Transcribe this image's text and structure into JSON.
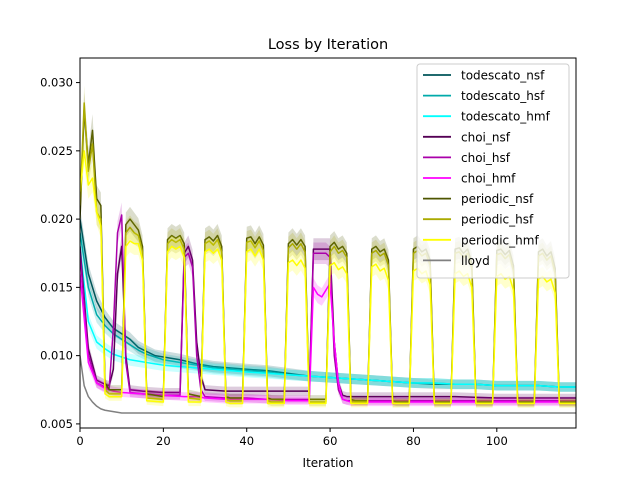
{
  "chart_data": {
    "type": "line",
    "title": "Loss by Iteration",
    "xlabel": "Iteration",
    "ylabel": "",
    "xlim": [
      0,
      119
    ],
    "ylim": [
      0.0047,
      0.0318
    ],
    "xticks": [
      0,
      20,
      40,
      60,
      80,
      100
    ],
    "yticks": [
      0.005,
      0.01,
      0.015,
      0.02,
      0.025,
      0.03
    ],
    "ytick_labels": [
      "0.005",
      "0.010",
      "0.015",
      "0.020",
      "0.025",
      "0.030"
    ],
    "grid": false,
    "legend_position": "top-right",
    "series": [
      {
        "name": "todescato_nsf",
        "color": "#00555a",
        "x": [
          0,
          2,
          4,
          6,
          8,
          10,
          12,
          14,
          16,
          18,
          20,
          24,
          28,
          32,
          36,
          40,
          45,
          50,
          55,
          60,
          65,
          70,
          75,
          80,
          85,
          90,
          95,
          100,
          105,
          110,
          115,
          119
        ],
        "y": [
          0.02,
          0.016,
          0.014,
          0.0128,
          0.012,
          0.0116,
          0.0112,
          0.0106,
          0.0103,
          0.01,
          0.0099,
          0.0097,
          0.0094,
          0.0092,
          0.0091,
          0.009,
          0.0089,
          0.0087,
          0.0085,
          0.0084,
          0.0083,
          0.0082,
          0.0081,
          0.008,
          0.0079,
          0.0079,
          0.0079,
          0.0078,
          0.0078,
          0.0078,
          0.0077,
          0.0077
        ]
      },
      {
        "name": "todescato_hsf",
        "color": "#00aaaa",
        "x": [
          0,
          2,
          4,
          6,
          8,
          10,
          12,
          14,
          16,
          18,
          20,
          24,
          28,
          32,
          36,
          40,
          45,
          50,
          55,
          60,
          65,
          70,
          75,
          80,
          85,
          90,
          95,
          100,
          105,
          110,
          115,
          119
        ],
        "y": [
          0.019,
          0.015,
          0.013,
          0.0122,
          0.0116,
          0.0112,
          0.0108,
          0.0104,
          0.0101,
          0.0099,
          0.0097,
          0.0095,
          0.0093,
          0.0091,
          0.009,
          0.0089,
          0.0088,
          0.0086,
          0.0085,
          0.0084,
          0.0083,
          0.0082,
          0.0081,
          0.008,
          0.008,
          0.0079,
          0.0079,
          0.0078,
          0.0078,
          0.0078,
          0.0077,
          0.0077
        ]
      },
      {
        "name": "todescato_hmf",
        "color": "#00ffff",
        "x": [
          0,
          2,
          4,
          6,
          8,
          10,
          12,
          14,
          16,
          18,
          20,
          24,
          28,
          32,
          36,
          40,
          45,
          50,
          55,
          60,
          65,
          70,
          75,
          80,
          85,
          90,
          95,
          100,
          105,
          110,
          115,
          119
        ],
        "y": [
          0.018,
          0.0125,
          0.011,
          0.0105,
          0.0101,
          0.0099,
          0.0097,
          0.0096,
          0.0095,
          0.0094,
          0.0093,
          0.0092,
          0.0091,
          0.009,
          0.0089,
          0.0088,
          0.0087,
          0.0086,
          0.0085,
          0.0084,
          0.0083,
          0.0082,
          0.0081,
          0.008,
          0.008,
          0.0079,
          0.0079,
          0.0078,
          0.0078,
          0.0078,
          0.0077,
          0.0077
        ]
      },
      {
        "name": "choi_nsf",
        "color": "#550055",
        "x": [
          0,
          2,
          4,
          6,
          7,
          8,
          9,
          10,
          11,
          12,
          15,
          20,
          24,
          25,
          26,
          27,
          28,
          29,
          30,
          35,
          40,
          45,
          50,
          55,
          56,
          57,
          58,
          59,
          60,
          61,
          62,
          63,
          64,
          70,
          80,
          90,
          100,
          110,
          119
        ],
        "y": [
          0.018,
          0.0105,
          0.0082,
          0.0079,
          0.0078,
          0.009,
          0.016,
          0.018,
          0.01,
          0.0075,
          0.0074,
          0.0073,
          0.0073,
          0.0175,
          0.018,
          0.017,
          0.011,
          0.0085,
          0.0075,
          0.0074,
          0.0074,
          0.0074,
          0.0074,
          0.0074,
          0.0178,
          0.0178,
          0.0178,
          0.0178,
          0.0178,
          0.011,
          0.008,
          0.0071,
          0.007,
          0.007,
          0.007,
          0.007,
          0.0069,
          0.0069,
          0.0069
        ]
      },
      {
        "name": "choi_hsf",
        "color": "#aa00aa",
        "x": [
          0,
          2,
          4,
          6,
          7,
          8,
          9,
          10,
          11,
          12,
          15,
          20,
          24,
          25,
          26,
          27,
          28,
          29,
          30,
          35,
          40,
          45,
          50,
          55,
          56,
          57,
          58,
          59,
          60,
          61,
          62,
          63,
          64,
          70,
          80,
          90,
          100,
          110,
          119
        ],
        "y": [
          0.0175,
          0.01,
          0.008,
          0.0077,
          0.0076,
          0.012,
          0.019,
          0.0203,
          0.0095,
          0.0073,
          0.0072,
          0.0071,
          0.0071,
          0.0172,
          0.0175,
          0.0165,
          0.01,
          0.0075,
          0.007,
          0.0069,
          0.0069,
          0.0068,
          0.0068,
          0.0068,
          0.0175,
          0.0175,
          0.0175,
          0.0175,
          0.0172,
          0.01,
          0.0075,
          0.0068,
          0.0067,
          0.0067,
          0.0067,
          0.0067,
          0.0067,
          0.0067,
          0.0067
        ]
      },
      {
        "name": "choi_hmf",
        "color": "#ff00ff",
        "x": [
          0,
          2,
          4,
          6,
          8,
          10,
          15,
          20,
          25,
          28,
          30,
          35,
          40,
          45,
          50,
          55,
          56,
          57,
          58,
          59,
          60,
          61,
          62,
          63,
          64,
          65,
          70,
          80,
          90,
          100,
          110,
          119
        ],
        "y": [
          0.016,
          0.0095,
          0.008,
          0.0076,
          0.0074,
          0.0073,
          0.0072,
          0.0071,
          0.007,
          0.007,
          0.0069,
          0.0068,
          0.0068,
          0.0068,
          0.0067,
          0.0067,
          0.015,
          0.0145,
          0.0143,
          0.0148,
          0.0153,
          0.011,
          0.008,
          0.0068,
          0.0067,
          0.0066,
          0.0066,
          0.0066,
          0.0066,
          0.0066,
          0.0066,
          0.0066
        ]
      },
      {
        "name": "periodic_nsf",
        "color": "#4d5500",
        "x": [
          0,
          1,
          2,
          3,
          4,
          5,
          6,
          7,
          10,
          11,
          12,
          13,
          14,
          15,
          16,
          20,
          21,
          22,
          23,
          24,
          25,
          26,
          29,
          30,
          31,
          32,
          33,
          34,
          35,
          36,
          39,
          40,
          41,
          42,
          43,
          44,
          45,
          46,
          49,
          50,
          51,
          52,
          53,
          54,
          55,
          56,
          59,
          60,
          61,
          62,
          63,
          64,
          65,
          66,
          69,
          70,
          71,
          72,
          73,
          74,
          75,
          76,
          79,
          80,
          81,
          82,
          83,
          84,
          85,
          86,
          89,
          90,
          91,
          92,
          93,
          94,
          95,
          96,
          99,
          100,
          101,
          102,
          103,
          104,
          105,
          106,
          109,
          110,
          111,
          112,
          113,
          114,
          115,
          116,
          119
        ],
        "y": [
          0.02,
          0.028,
          0.024,
          0.0265,
          0.0215,
          0.021,
          0.008,
          0.0075,
          0.0075,
          0.0196,
          0.02,
          0.0196,
          0.0192,
          0.018,
          0.0072,
          0.007,
          0.0185,
          0.0188,
          0.0186,
          0.0188,
          0.0182,
          0.0072,
          0.007,
          0.0185,
          0.0187,
          0.0184,
          0.0188,
          0.018,
          0.007,
          0.0069,
          0.0069,
          0.0186,
          0.0187,
          0.0182,
          0.0187,
          0.0181,
          0.0069,
          0.0068,
          0.0068,
          0.0182,
          0.0185,
          0.0181,
          0.0185,
          0.018,
          0.0068,
          0.0068,
          0.0068,
          0.018,
          0.0183,
          0.0178,
          0.018,
          0.0175,
          0.0068,
          0.0067,
          0.0067,
          0.0178,
          0.018,
          0.0176,
          0.0178,
          0.017,
          0.0067,
          0.0066,
          0.0066,
          0.0178,
          0.018,
          0.0176,
          0.0178,
          0.017,
          0.0066,
          0.0066,
          0.0066,
          0.0178,
          0.0179,
          0.0175,
          0.0178,
          0.0168,
          0.0066,
          0.0066,
          0.0066,
          0.0177,
          0.0178,
          0.0174,
          0.0177,
          0.0166,
          0.0066,
          0.0066,
          0.0066,
          0.0176,
          0.0178,
          0.0173,
          0.0176,
          0.0164,
          0.0066,
          0.0066,
          0.0066
        ]
      },
      {
        "name": "periodic_hsf",
        "color": "#aaaa00",
        "x": [
          0,
          1,
          2,
          3,
          4,
          5,
          6,
          7,
          10,
          11,
          12,
          13,
          14,
          15,
          16,
          20,
          21,
          22,
          23,
          24,
          25,
          26,
          29,
          30,
          31,
          32,
          33,
          34,
          35,
          36,
          39,
          40,
          41,
          42,
          43,
          44,
          45,
          46,
          49,
          50,
          51,
          52,
          53,
          54,
          55,
          56,
          59,
          60,
          61,
          62,
          63,
          64,
          65,
          66,
          69,
          70,
          71,
          72,
          73,
          74,
          75,
          76,
          79,
          80,
          81,
          82,
          83,
          84,
          85,
          86,
          89,
          90,
          91,
          92,
          93,
          94,
          95,
          96,
          99,
          100,
          101,
          102,
          103,
          104,
          105,
          106,
          109,
          110,
          111,
          112,
          113,
          114,
          115,
          116,
          119
        ],
        "y": [
          0.021,
          0.0285,
          0.0235,
          0.0255,
          0.0205,
          0.02,
          0.0075,
          0.0072,
          0.0072,
          0.019,
          0.0194,
          0.019,
          0.0188,
          0.0176,
          0.0069,
          0.0068,
          0.0182,
          0.0185,
          0.0183,
          0.0185,
          0.0178,
          0.0069,
          0.0068,
          0.0182,
          0.0184,
          0.0181,
          0.0185,
          0.0176,
          0.0068,
          0.0067,
          0.0067,
          0.0183,
          0.0184,
          0.0179,
          0.0184,
          0.0177,
          0.0067,
          0.0066,
          0.0066,
          0.0179,
          0.0182,
          0.0178,
          0.0182,
          0.0176,
          0.0066,
          0.0066,
          0.0066,
          0.0176,
          0.018,
          0.0175,
          0.0177,
          0.0172,
          0.0066,
          0.0066,
          0.0066,
          0.0175,
          0.0177,
          0.0173,
          0.0175,
          0.0166,
          0.0065,
          0.0065,
          0.0065,
          0.0175,
          0.0177,
          0.0173,
          0.0175,
          0.0166,
          0.0065,
          0.0065,
          0.0065,
          0.0175,
          0.0176,
          0.0172,
          0.0175,
          0.0164,
          0.0065,
          0.0065,
          0.0065,
          0.0174,
          0.0175,
          0.0171,
          0.0174,
          0.0162,
          0.0065,
          0.0065,
          0.0065,
          0.0173,
          0.0175,
          0.017,
          0.0173,
          0.016,
          0.0065,
          0.0065,
          0.0065
        ]
      },
      {
        "name": "periodic_hmf",
        "color": "#ffff00",
        "x": [
          0,
          1,
          2,
          3,
          4,
          5,
          6,
          7,
          10,
          11,
          12,
          13,
          14,
          15,
          16,
          20,
          21,
          22,
          23,
          24,
          25,
          26,
          29,
          30,
          31,
          32,
          33,
          34,
          35,
          36,
          39,
          40,
          41,
          42,
          43,
          44,
          45,
          46,
          49,
          50,
          51,
          52,
          53,
          54,
          55,
          56,
          59,
          60,
          61,
          62,
          63,
          64,
          65,
          66,
          69,
          70,
          71,
          72,
          73,
          74,
          75,
          76,
          79,
          80,
          81,
          82,
          83,
          84,
          85,
          86,
          89,
          90,
          91,
          92,
          93,
          94,
          95,
          96,
          99,
          100,
          101,
          102,
          103,
          104,
          105,
          106,
          109,
          110,
          111,
          112,
          113,
          114,
          115,
          116,
          119
        ],
        "y": [
          0.022,
          0.025,
          0.0225,
          0.023,
          0.0205,
          0.0195,
          0.0072,
          0.007,
          0.007,
          0.018,
          0.0184,
          0.0182,
          0.0182,
          0.017,
          0.0067,
          0.0066,
          0.0176,
          0.018,
          0.0178,
          0.018,
          0.0172,
          0.0066,
          0.0066,
          0.0176,
          0.0178,
          0.0175,
          0.0178,
          0.017,
          0.0066,
          0.0065,
          0.0065,
          0.0176,
          0.0178,
          0.0173,
          0.0178,
          0.017,
          0.0065,
          0.0065,
          0.0065,
          0.0168,
          0.017,
          0.0166,
          0.017,
          0.0164,
          0.0065,
          0.0065,
          0.0065,
          0.0166,
          0.0168,
          0.0163,
          0.0165,
          0.016,
          0.0065,
          0.0065,
          0.0065,
          0.0165,
          0.0167,
          0.0162,
          0.0164,
          0.0155,
          0.0065,
          0.0065,
          0.0065,
          0.0162,
          0.0164,
          0.016,
          0.0162,
          0.0152,
          0.0065,
          0.0065,
          0.0065,
          0.016,
          0.0162,
          0.0158,
          0.016,
          0.015,
          0.0065,
          0.0065,
          0.0065,
          0.0158,
          0.016,
          0.0156,
          0.0158,
          0.0148,
          0.0065,
          0.0065,
          0.0065,
          0.0156,
          0.0158,
          0.0154,
          0.0156,
          0.0146,
          0.0065,
          0.0065,
          0.0065
        ]
      },
      {
        "name": "lloyd",
        "color": "#808080",
        "x": [
          0,
          1,
          2,
          3,
          4,
          5,
          6,
          8,
          10,
          12,
          15,
          20,
          30,
          40,
          60,
          80,
          100,
          119
        ],
        "y": [
          0.01,
          0.0078,
          0.007,
          0.0066,
          0.0063,
          0.0061,
          0.006,
          0.0059,
          0.0058,
          0.0058,
          0.0058,
          0.0058,
          0.0058,
          0.0058,
          0.0058,
          0.0058,
          0.0058,
          0.0058
        ]
      }
    ]
  }
}
